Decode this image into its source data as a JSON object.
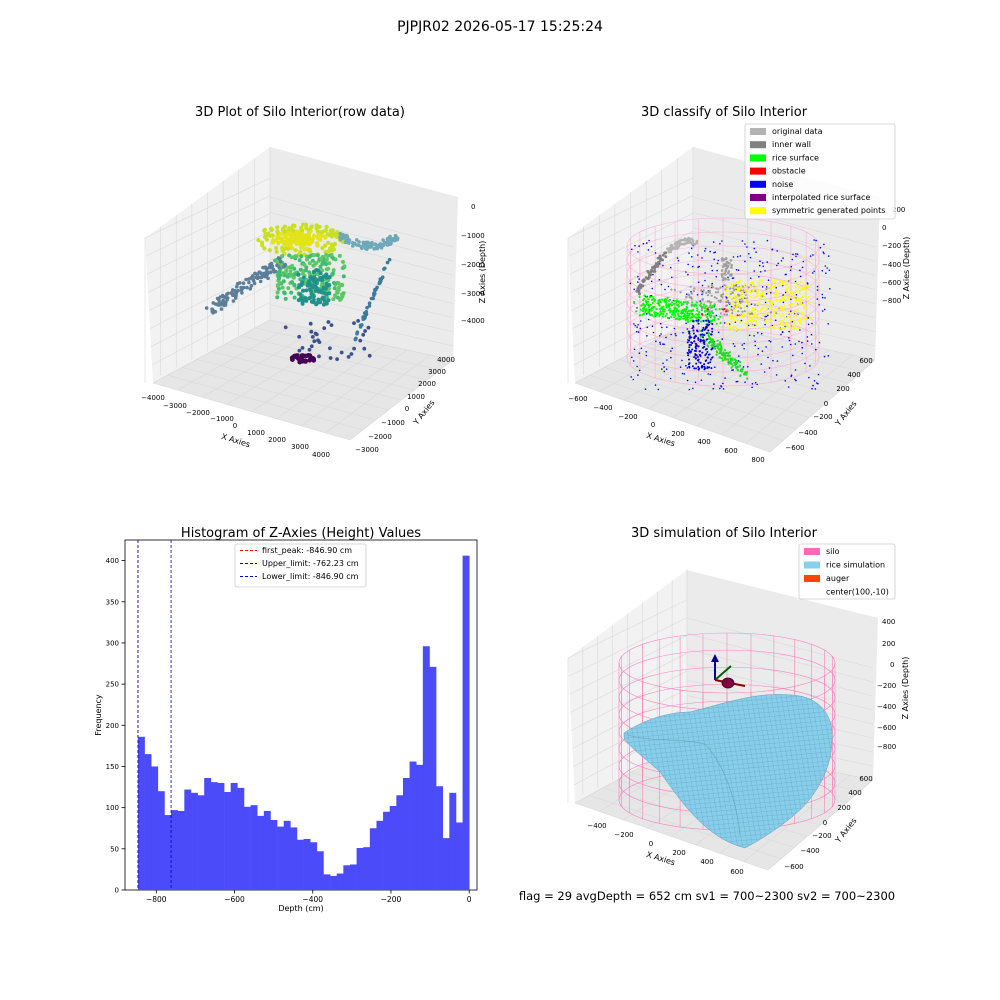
{
  "figure": {
    "suptitle": "PJPJR02 2026-05-17 15:25:24",
    "footer": "flag = 29  avgDepth = 652 cm  sv1 = 700~2300  sv2 = 700~2300"
  },
  "colors": {
    "histogram": "#4b4bf9",
    "first_peak": "#ff0000",
    "upper_limit": "#0000cc",
    "lower_limit": "#0000cc",
    "pane": "#f2f2f2",
    "grid": "#d9d9d9"
  },
  "chart_data": [
    {
      "id": "raw",
      "type": "scatter",
      "title": "3D Plot of Silo Interior(row data)",
      "xlabel": "X Axies",
      "ylabel": "Y Axies",
      "zlabel": "Z Axies (Depth)",
      "x_ticks": [
        "−4000",
        "−3000",
        "−2000",
        "−1000",
        "0",
        "1000",
        "2000",
        "3000",
        "4000"
      ],
      "y_ticks": [
        "−3000",
        "−2000",
        "−1000",
        "0",
        "1000",
        "2000",
        "3000",
        "4000"
      ],
      "z_ticks": [
        "0",
        "−1000",
        "−2000",
        "−3000",
        "−4000"
      ],
      "colormap": "viridis"
    },
    {
      "id": "classify",
      "type": "scatter",
      "title": "3D classify of Silo Interior",
      "xlabel": "X Axies",
      "ylabel": "Y Axies",
      "zlabel": "Z Axies (Depth)",
      "x_ticks": [
        "−600",
        "−400",
        "−200",
        "0",
        "200",
        "400",
        "600",
        "800"
      ],
      "y_ticks": [
        "−600",
        "−400",
        "−200",
        "0",
        "200",
        "400",
        "600"
      ],
      "z_ticks": [
        "200",
        "0",
        "−200",
        "−400",
        "−600",
        "−800"
      ],
      "legend_position": "top-right",
      "legend": [
        {
          "label": "original data",
          "color": "#b3b3b3"
        },
        {
          "label": "inner wall",
          "color": "#808080"
        },
        {
          "label": "rice surface",
          "color": "#00ff00"
        },
        {
          "label": "obstacle",
          "color": "#ff0000"
        },
        {
          "label": "noise",
          "color": "#0000ff"
        },
        {
          "label": "interpolated rice surface",
          "color": "#800080"
        },
        {
          "label": "symmetric generated points",
          "color": "#ffff00"
        }
      ]
    },
    {
      "id": "hist",
      "type": "bar",
      "title": "Histogram of Z-Axies (Height) Values",
      "xlabel": "Depth (cm)",
      "ylabel": "Frequency",
      "xlim": [
        -880,
        20
      ],
      "ylim": [
        0,
        425
      ],
      "x_ticks": [
        {
          "v": -800,
          "l": "−800"
        },
        {
          "v": -600,
          "l": "−600"
        },
        {
          "v": -400,
          "l": "−400"
        },
        {
          "v": -200,
          "l": "−200"
        },
        {
          "v": 0,
          "l": "0"
        }
      ],
      "y_ticks": [
        0,
        50,
        100,
        150,
        200,
        250,
        300,
        350,
        400
      ],
      "bin_start": -846.9,
      "bin_width": 16.94,
      "values": [
        186,
        165,
        150,
        120,
        91,
        97,
        96,
        122,
        118,
        115,
        136,
        131,
        130,
        119,
        130,
        124,
        101,
        103,
        90,
        96,
        85,
        77,
        84,
        76,
        61,
        62,
        58,
        47,
        19,
        17,
        20,
        30,
        31,
        51,
        52,
        75,
        84,
        95,
        102,
        115,
        136,
        156,
        152,
        296,
        271,
        126,
        63,
        118,
        82,
        406
      ],
      "lines": [
        {
          "label": "first_peak: -846.90 cm",
          "x": -846.9,
          "color": "#ff0000"
        },
        {
          "label": "Upper_limit: -762.23 cm",
          "x": -762.23,
          "color": "#0000cc"
        },
        {
          "label": "Lower_limit: -846.90 cm",
          "x": -846.9,
          "color": "#0000cc"
        }
      ],
      "legend_position": "top-center"
    },
    {
      "id": "sim",
      "type": "area",
      "title": "3D simulation of Silo Interior",
      "xlabel": "X Axies",
      "ylabel": "Y Axies",
      "zlabel": "Z Axies (Depth)",
      "x_ticks": [
        "−400",
        "−200",
        "0",
        "200",
        "400",
        "600"
      ],
      "y_ticks": [
        "−600",
        "−400",
        "−200",
        "0",
        "200",
        "400",
        "600"
      ],
      "z_ticks": [
        "400",
        "200",
        "0",
        "−200",
        "−400",
        "−600",
        "−800"
      ],
      "legend_position": "top-right",
      "legend": [
        {
          "label": "silo",
          "color": "#ff69b4"
        },
        {
          "label": "rice simulation",
          "color": "#87ceeb"
        },
        {
          "label": "auger",
          "color": "#ff4500"
        },
        {
          "label": "center(100,-10)",
          "color": "none"
        }
      ]
    }
  ]
}
